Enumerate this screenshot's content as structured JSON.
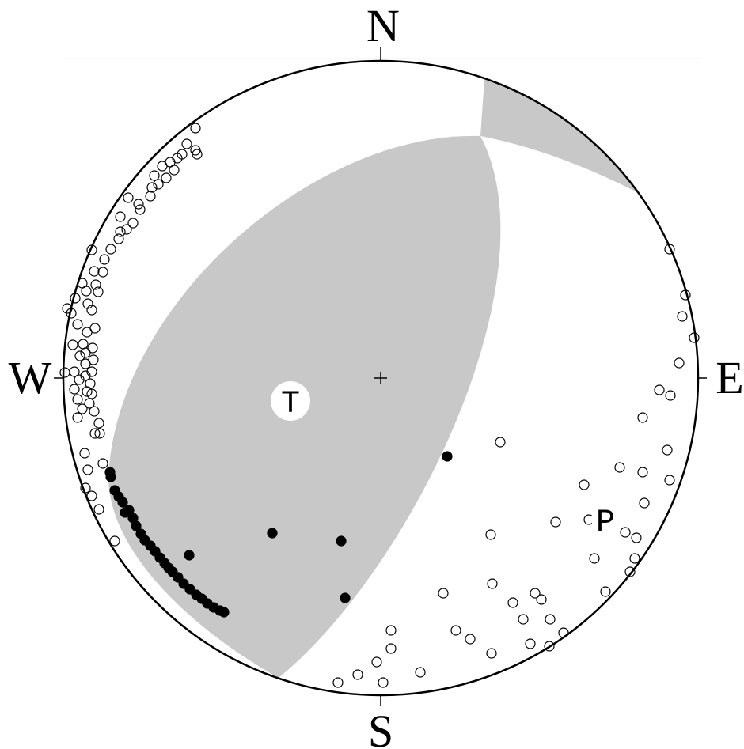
{
  "labels": {
    "north": "N",
    "east": "E",
    "south": "S",
    "west": "W",
    "t_axis": "T",
    "p_axis": "P"
  }
}
